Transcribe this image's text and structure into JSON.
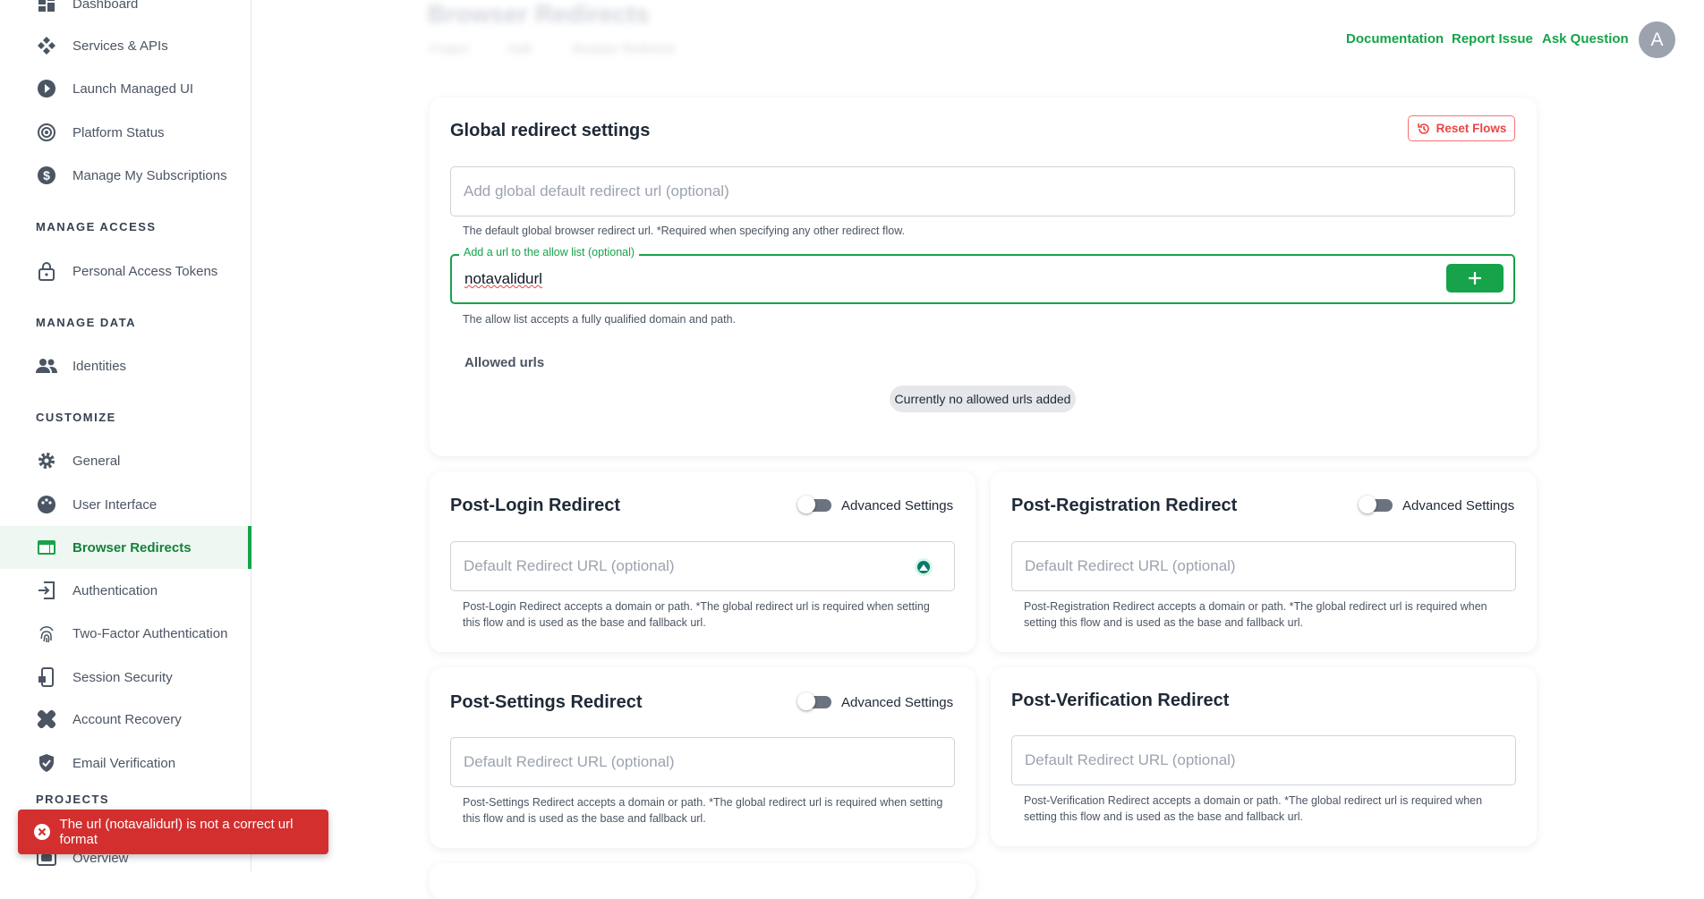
{
  "sidebar": {
    "items": [
      {
        "label": "Dashboard",
        "icon": "dashboard-icon"
      },
      {
        "label": "Services & APIs",
        "icon": "services-icon"
      },
      {
        "label": "Launch Managed UI",
        "icon": "play-icon"
      },
      {
        "label": "Platform Status",
        "icon": "broadcast-icon"
      },
      {
        "label": "Manage My Subscriptions",
        "icon": "dollar-icon"
      }
    ],
    "sections": {
      "access": "MANAGE ACCESS",
      "data": "MANAGE DATA",
      "customize": "CUSTOMIZE",
      "projects": "PROJECTS"
    },
    "access_items": [
      {
        "label": "Personal Access Tokens",
        "icon": "lock-icon"
      }
    ],
    "data_items": [
      {
        "label": "Identities",
        "icon": "people-icon"
      }
    ],
    "customize_items": [
      {
        "label": "General",
        "icon": "gear-icon"
      },
      {
        "label": "User Interface",
        "icon": "palette-icon"
      },
      {
        "label": "Browser Redirects",
        "icon": "browser-icon",
        "active": true
      },
      {
        "label": "Authentication",
        "icon": "login-icon"
      },
      {
        "label": "Two-Factor Authentication",
        "icon": "fingerprint-icon"
      },
      {
        "label": "Session Security",
        "icon": "phone-lock-icon"
      },
      {
        "label": "Account Recovery",
        "icon": "bandage-icon"
      },
      {
        "label": "Email Verification",
        "icon": "shield-check-icon"
      }
    ],
    "projects_items": [
      {
        "label": "Overview",
        "icon": "overview-icon"
      }
    ]
  },
  "header": {
    "title": "Browser Redirects",
    "breadcrumb": [
      "Project",
      "Auth",
      "Browser Redirects"
    ],
    "links": [
      "Documentation",
      "Report Issue",
      "Ask Question"
    ],
    "avatar": "A"
  },
  "global": {
    "title": "Global redirect settings",
    "reset_label": "Reset Flows",
    "default_placeholder": "Add global default redirect url (optional)",
    "default_help": "The default global browser redirect url. *Required when specifying any other redirect flow.",
    "allow_label": "Add a url to the allow list (optional)",
    "allow_value": "notavalidurl",
    "allow_help": "The allow list accepts a fully qualified domain and path.",
    "allowed_title": "Allowed urls",
    "empty_chip": "Currently no allowed urls added"
  },
  "flows": [
    {
      "title": "Post-Login Redirect",
      "advanced": "Advanced Settings",
      "placeholder": "Default Redirect URL (optional)",
      "help": "Post-Login Redirect accepts a domain or path. *The global redirect url is required when setting this flow and is used as the base and fallback url."
    },
    {
      "title": "Post-Registration Redirect",
      "advanced": "Advanced Settings",
      "placeholder": "Default Redirect URL (optional)",
      "help": "Post-Registration Redirect accepts a domain or path. *The global redirect url is required when setting this flow and is used as the base and fallback url."
    },
    {
      "title": "Post-Settings Redirect",
      "advanced": "Advanced Settings",
      "placeholder": "Default Redirect URL (optional)",
      "help": "Post-Settings Redirect accepts a domain or path. *The global redirect url is required when setting this flow and is used as the base and fallback url."
    },
    {
      "title": "Post-Verification Redirect",
      "placeholder": "Default Redirect URL (optional)",
      "help": "Post-Verification Redirect accepts a domain or path. *The global redirect url is required when setting this flow and is used as the base and fallback url."
    }
  ],
  "toast": {
    "message": "The url (notavalidurl) is not a correct url format",
    "color": "#d32f2f"
  },
  "colors": {
    "accent": "#16a34a",
    "danger": "#ef4444"
  }
}
